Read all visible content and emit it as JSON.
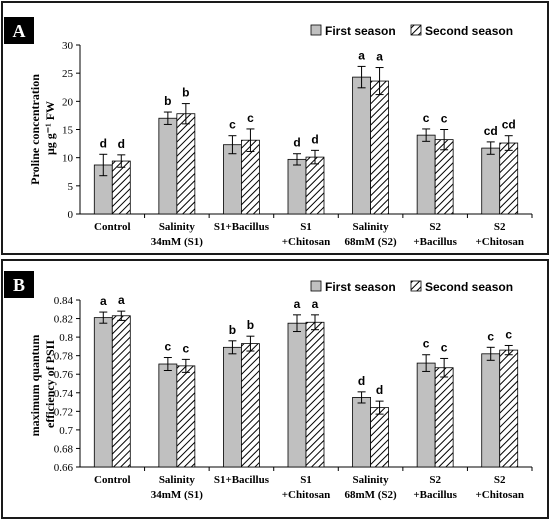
{
  "chart_data": [
    {
      "type": "bar",
      "panel_label": "A",
      "categories": [
        [
          "Control"
        ],
        [
          "Salinity",
          "34mM (S1)"
        ],
        [
          "S1+Bacillus"
        ],
        [
          "S1",
          "+Chitosan"
        ],
        [
          "Salinity",
          "68mM (S2)"
        ],
        [
          "S2",
          "+Bacillus"
        ],
        [
          "S2",
          "+Chitosan"
        ]
      ],
      "series": [
        {
          "name": "First season",
          "values": [
            8.7,
            17.0,
            12.3,
            9.7,
            24.3,
            14.0,
            11.7
          ],
          "errors": [
            1.9,
            1.1,
            1.6,
            1.0,
            1.9,
            1.1,
            1.1
          ],
          "letters": [
            "d",
            "b",
            "c",
            "d",
            "a",
            "c",
            "cd"
          ]
        },
        {
          "name": "Second season",
          "values": [
            9.4,
            17.8,
            13.1,
            10.1,
            23.6,
            13.2,
            12.6
          ],
          "errors": [
            1.1,
            1.8,
            2.0,
            1.2,
            2.4,
            1.8,
            1.3
          ],
          "letters": [
            "d",
            "b",
            "c",
            "d",
            "a",
            "c",
            "cd"
          ]
        }
      ],
      "ylabel_lines": [
        "Proline concentration",
        "μg g⁻¹ FW"
      ],
      "ylim": [
        0,
        30
      ],
      "yticks": [
        "0",
        "5",
        "10",
        "15",
        "20",
        "25",
        "30"
      ],
      "legend_position": "top-right",
      "grid": false
    },
    {
      "type": "bar",
      "panel_label": "B",
      "categories": [
        [
          "Control"
        ],
        [
          "Salinity",
          "34mM (S1)"
        ],
        [
          "S1+Bacillus"
        ],
        [
          "S1",
          "+Chitosan"
        ],
        [
          "Salinity",
          "68mM (S2)"
        ],
        [
          "S2",
          "+Bacillus"
        ],
        [
          "S2",
          "+Chitosan"
        ]
      ],
      "series": [
        {
          "name": "First season",
          "values": [
            0.821,
            0.771,
            0.789,
            0.815,
            0.735,
            0.772,
            0.782
          ],
          "errors": [
            0.006,
            0.007,
            0.007,
            0.009,
            0.006,
            0.009,
            0.007
          ],
          "letters": [
            "a",
            "c",
            "b",
            "a",
            "d",
            "c",
            "c"
          ]
        },
        {
          "name": "Second season",
          "values": [
            0.823,
            0.769,
            0.793,
            0.816,
            0.724,
            0.767,
            0.786
          ],
          "errors": [
            0.005,
            0.007,
            0.008,
            0.008,
            0.007,
            0.01,
            0.005
          ],
          "letters": [
            "a",
            "c",
            "b",
            "a",
            "d",
            "c",
            "c"
          ]
        }
      ],
      "ylabel_lines": [
        "maximum quantum",
        "efficiency of PSII"
      ],
      "ylim": [
        0.66,
        0.84
      ],
      "yticks": [
        "0.66",
        "0.68",
        "0.7",
        "0.72",
        "0.74",
        "0.76",
        "0.78",
        "0.8",
        "0.82",
        "0.84"
      ],
      "legend_position": "top-right",
      "grid": false
    }
  ],
  "colors": {
    "first_fill": "#c0c0c0",
    "hatch": "#000000",
    "panel_border": "#1a1a1a",
    "panel_label_bg": "#000000"
  }
}
